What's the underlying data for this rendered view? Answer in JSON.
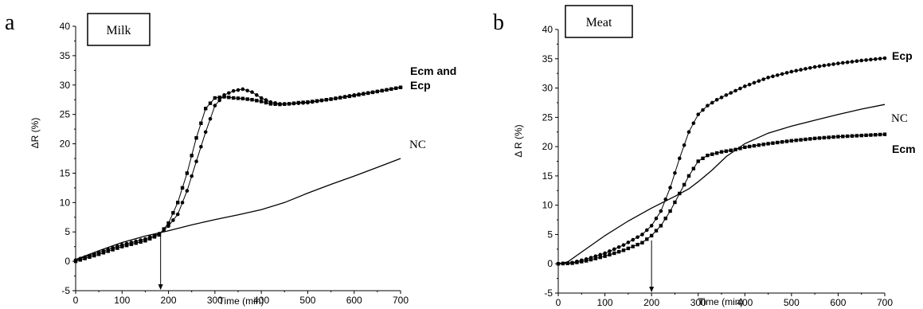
{
  "chart_data": [
    {
      "type": "line",
      "panel_letter": "a",
      "box_label": "Milk",
      "xlabel": "Time (min)",
      "ylabel": "ΔR (%)",
      "xlim": [
        0,
        700
      ],
      "ylim": [
        -5,
        40
      ],
      "x_ticks": [
        0,
        100,
        200,
        300,
        400,
        500,
        600,
        700
      ],
      "y_ticks": [
        -5,
        0,
        5,
        10,
        15,
        20,
        25,
        30,
        35,
        40
      ],
      "annotation_arrow_x": 183,
      "series_labels": [
        {
          "text": "Ecm and",
          "style": "bold"
        },
        {
          "text": "Ecp",
          "style": "bold"
        },
        {
          "text": "NC",
          "style": "serif"
        }
      ],
      "series": [
        {
          "marker": "square",
          "x": [
            0,
            50,
            100,
            150,
            180,
            200,
            220,
            240,
            260,
            280,
            300,
            320,
            340,
            360,
            380,
            400,
            420,
            440,
            460,
            480,
            500,
            550,
            600,
            650,
            700
          ],
          "y": [
            0,
            1.2,
            2.5,
            3.5,
            4.5,
            6.5,
            10,
            15,
            21,
            26,
            27.8,
            28,
            27.8,
            27.7,
            27.5,
            27.2,
            26.8,
            26.7,
            26.8,
            27,
            27.1,
            27.6,
            28.2,
            28.9,
            29.6
          ]
        },
        {
          "marker": "circle",
          "x": [
            0,
            50,
            100,
            150,
            180,
            200,
            220,
            240,
            260,
            280,
            300,
            320,
            340,
            360,
            380,
            400,
            420,
            440,
            460,
            480,
            500,
            550,
            600,
            650,
            700
          ],
          "y": [
            0.2,
            1.5,
            2.8,
            3.8,
            4.7,
            6,
            8,
            12,
            17,
            22,
            26.5,
            28.3,
            29,
            29.3,
            28.8,
            27.8,
            27.1,
            26.8,
            26.8,
            26.9,
            27,
            27.6,
            28.3,
            28.9,
            29.6
          ]
        },
        {
          "marker": "none",
          "x": [
            0,
            50,
            100,
            150,
            200,
            250,
            300,
            350,
            400,
            450,
            500,
            550,
            600,
            650,
            700
          ],
          "y": [
            0.3,
            1.8,
            3.2,
            4.3,
            5.2,
            6.2,
            7.1,
            7.9,
            8.8,
            10,
            11.6,
            13.1,
            14.5,
            16,
            17.5
          ]
        }
      ]
    },
    {
      "type": "line",
      "panel_letter": "b",
      "box_label": "Meat",
      "xlabel": "Time (min)",
      "ylabel": "Δ R (%)",
      "xlim": [
        0,
        700
      ],
      "ylim": [
        -5,
        40
      ],
      "x_ticks": [
        0,
        100,
        200,
        300,
        400,
        500,
        600,
        700
      ],
      "y_ticks": [
        -5,
        0,
        5,
        10,
        15,
        20,
        25,
        30,
        35,
        40
      ],
      "annotation_arrow_x": 200,
      "series_labels": [
        {
          "text": "Ecp",
          "style": "bold"
        },
        {
          "text": "NC",
          "style": "serif"
        },
        {
          "text": "Ecm",
          "style": "bold"
        }
      ],
      "series": [
        {
          "marker": "circle",
          "x": [
            0,
            30,
            60,
            100,
            140,
            180,
            200,
            220,
            240,
            260,
            280,
            300,
            320,
            340,
            360,
            400,
            450,
            500,
            550,
            600,
            650,
            700
          ],
          "y": [
            0,
            0.2,
            0.8,
            1.8,
            3.2,
            5,
            6.5,
            9,
            13,
            18,
            22.5,
            25.5,
            27,
            28,
            28.8,
            30.3,
            31.8,
            32.8,
            33.6,
            34.2,
            34.7,
            35.1
          ]
        },
        {
          "marker": "square",
          "x": [
            0,
            30,
            60,
            100,
            140,
            180,
            200,
            220,
            240,
            260,
            280,
            300,
            320,
            350,
            380,
            400,
            450,
            500,
            550,
            600,
            650,
            700
          ],
          "y": [
            0,
            0.1,
            0.5,
            1.3,
            2.3,
            3.6,
            4.8,
            6.5,
            9,
            12,
            15,
            17.5,
            18.5,
            19.1,
            19.5,
            19.9,
            20.5,
            21,
            21.4,
            21.7,
            21.9,
            22.1
          ]
        },
        {
          "marker": "none",
          "x": [
            0,
            20,
            50,
            100,
            150,
            200,
            250,
            280,
            300,
            330,
            360,
            400,
            450,
            500,
            550,
            600,
            650,
            700
          ],
          "y": [
            0,
            0.3,
            2,
            4.8,
            7.3,
            9.5,
            11.5,
            12.8,
            14,
            16,
            18.3,
            20.5,
            22.3,
            23.5,
            24.5,
            25.5,
            26.4,
            27.2
          ]
        }
      ]
    }
  ]
}
